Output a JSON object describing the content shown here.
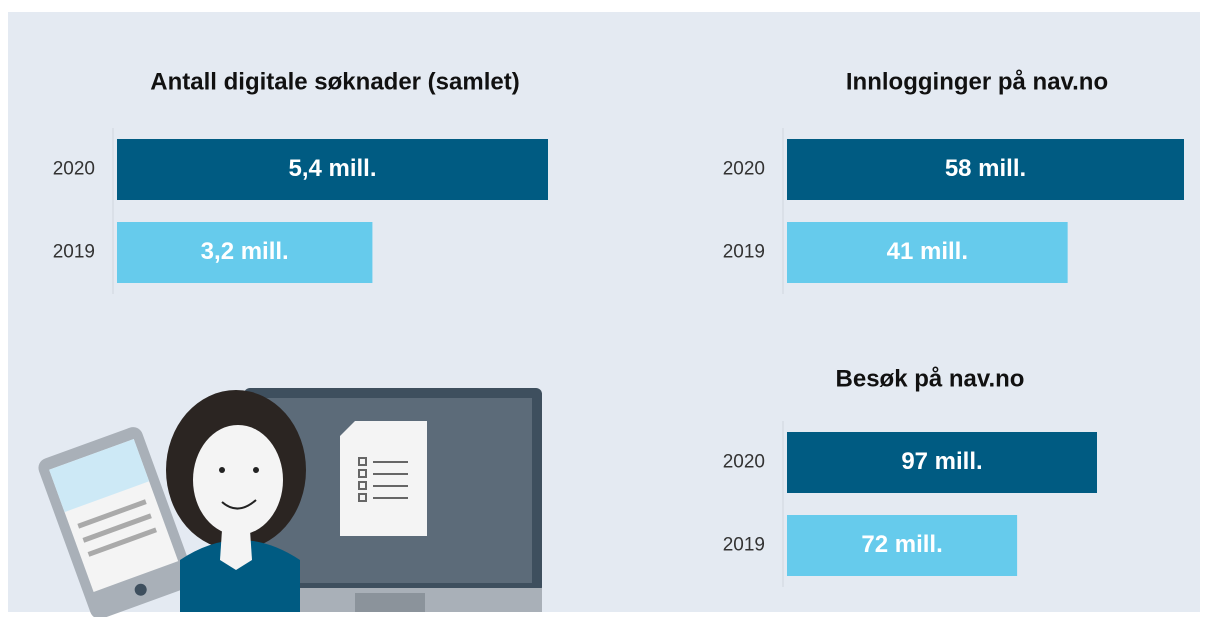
{
  "chart_data": [
    {
      "type": "bar",
      "title": "Antall digitale søknader (samlet)",
      "categories": [
        "2020",
        "2019"
      ],
      "values": [
        5.4,
        3.2
      ],
      "value_labels": [
        "5,4 mill.",
        "3,2 mill."
      ],
      "colors": [
        "#005b82",
        "#66cbec"
      ]
    },
    {
      "type": "bar",
      "title": "Innlogginger på nav.no",
      "categories": [
        "2020",
        "2019"
      ],
      "values": [
        58,
        41
      ],
      "value_labels": [
        "58 mill.",
        "41 mill."
      ],
      "colors": [
        "#005b82",
        "#66cbec"
      ]
    },
    {
      "type": "bar",
      "title": "Besøk på nav.no",
      "categories": [
        "2020",
        "2019"
      ],
      "values": [
        97,
        72
      ],
      "value_labels": [
        "97 mill.",
        "72 mill."
      ],
      "colors": [
        "#005b82",
        "#66cbec"
      ]
    }
  ]
}
